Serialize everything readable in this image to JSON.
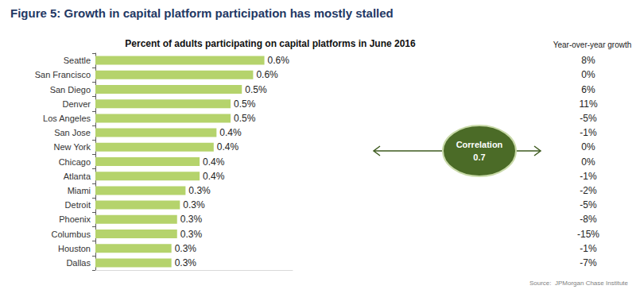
{
  "chart_data": {
    "type": "bar",
    "orientation": "horizontal",
    "title": "Figure 5: Growth in capital platform participation has mostly stalled",
    "subtitle": "Percent of adults participating on capital platforms in June 2016",
    "categories": [
      "Seattle",
      "San Francisco",
      "San Diego",
      "Denver",
      "Los Angeles",
      "San Jose",
      "New York",
      "Chicago",
      "Atlanta",
      "Miami",
      "Detroit",
      "Phoenix",
      "Columbus",
      "Houston",
      "Dallas"
    ],
    "values": [
      0.6,
      0.56,
      0.52,
      0.48,
      0.48,
      0.43,
      0.42,
      0.37,
      0.37,
      0.32,
      0.3,
      0.29,
      0.29,
      0.27,
      0.27
    ],
    "value_labels": [
      "0.6%",
      "0.6%",
      "0.5%",
      "0.5%",
      "0.5%",
      "0.4%",
      "0.4%",
      "0.4%",
      "0.4%",
      "0.3%",
      "0.3%",
      "0.3%",
      "0.3%",
      "0.3%",
      "0.3%"
    ],
    "data_labels": true,
    "color": "#b5d36c",
    "xlim": [
      0,
      0.7
    ],
    "tick_labels": "y",
    "grid": false,
    "growth_title": "Year-over-year growth",
    "growth": [
      8,
      0,
      6,
      11,
      -5,
      -1,
      0,
      0,
      -1,
      -2,
      -5,
      -8,
      -15,
      -1,
      -7
    ],
    "growth_labels": [
      "8%",
      "0%",
      "6%",
      "11%",
      "-5%",
      "-1%",
      "0%",
      "0%",
      "-1%",
      "-2%",
      "-5%",
      "-8%",
      "-15%",
      "-1%",
      "-7%"
    ],
    "annotation": "Correlation",
    "correlation": 0.7,
    "source": "Source:  JPMorgan Chase Institute"
  }
}
